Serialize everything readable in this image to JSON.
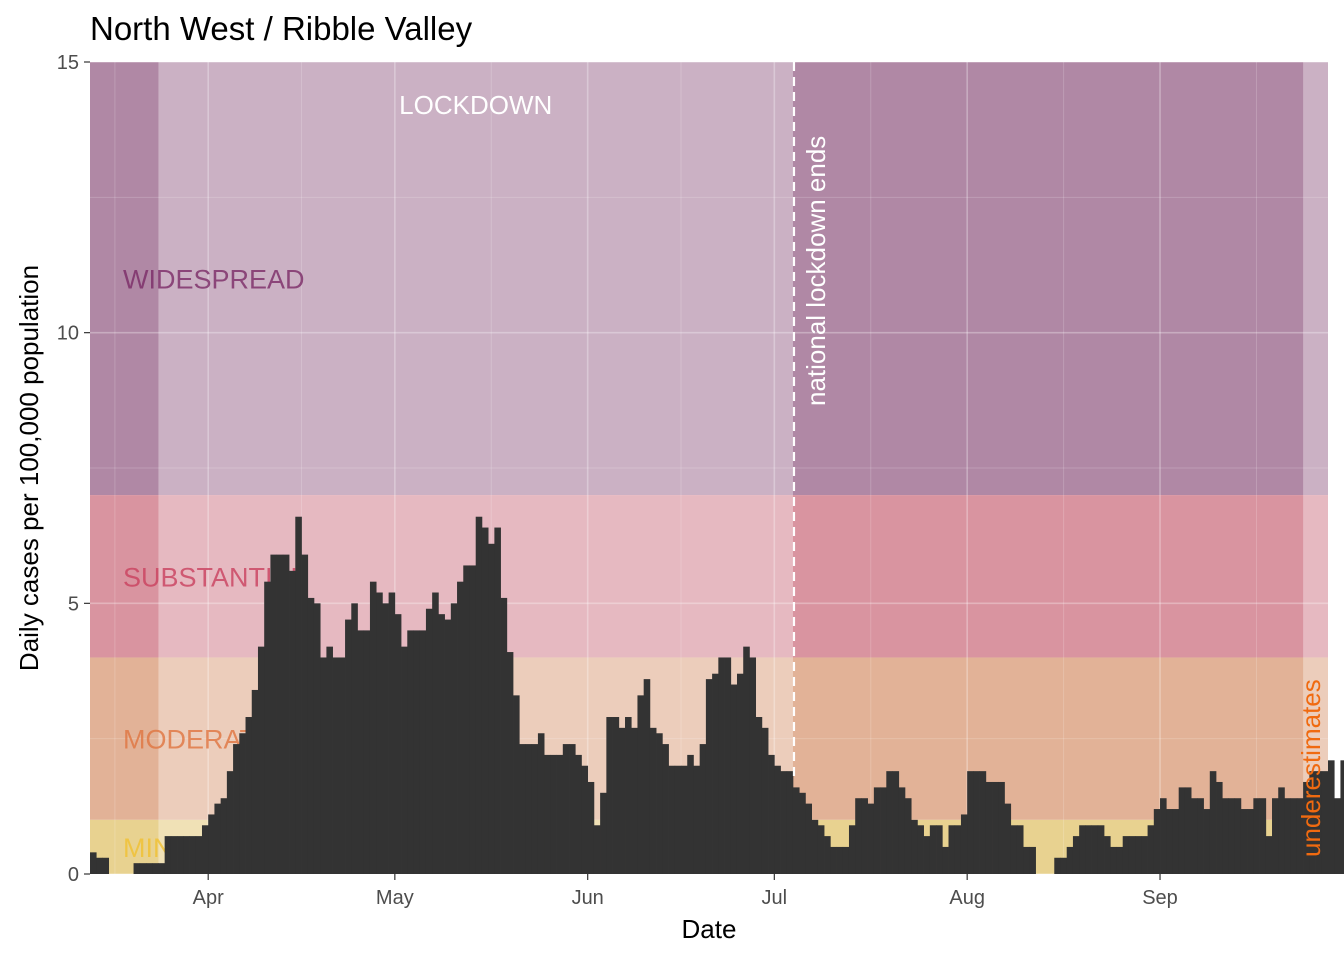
{
  "chart_data": {
    "type": "bar",
    "title": "North West / Ribble Valley",
    "xlabel": "Date",
    "ylabel": "Daily cases per 100,000 population",
    "xlim": [
      "2020-03-13",
      "2020-09-28"
    ],
    "ylim": [
      0,
      15
    ],
    "yticks": [
      0,
      5,
      10,
      15
    ],
    "x_ticks": [
      {
        "date": "2020-04-01",
        "label": "Apr"
      },
      {
        "date": "2020-05-01",
        "label": "May"
      },
      {
        "date": "2020-06-01",
        "label": "Jun"
      },
      {
        "date": "2020-07-01",
        "label": "Jul"
      },
      {
        "date": "2020-08-01",
        "label": "Aug"
      },
      {
        "date": "2020-09-01",
        "label": "Sep"
      }
    ],
    "grid": true,
    "bar_color": "#333333",
    "bands": [
      {
        "label": "WIDESPREAD",
        "from": 7,
        "to": 15,
        "color": "#b088a5",
        "label_color": "#7b2a67",
        "label_value": 11
      },
      {
        "label": "SUBSTANTIAL",
        "from": 4,
        "to": 7,
        "color": "#d994a0",
        "label_color": "#c9405e",
        "label_value": 5.5
      },
      {
        "label": "MODERATE",
        "from": 1,
        "to": 4,
        "color": "#e2b297",
        "label_color": "#e07440",
        "label_value": 2.5
      },
      {
        "label": "MINOR",
        "from": 0,
        "to": 1,
        "color": "#e8d290",
        "label_color": "#f0c030",
        "label_value": 0.5
      }
    ],
    "lockdown": {
      "label": "LOCKDOWN",
      "start": "2020-03-24",
      "end": "2020-07-04",
      "color": "#ffffff",
      "opacity": 0.35
    },
    "underestimate_period": {
      "start": "2020-09-24",
      "end": "2020-09-28",
      "color": "#ffffff",
      "opacity": 0.35,
      "label": "underestimates",
      "label_color": "#f06a10"
    },
    "event_line": {
      "date": "2020-07-04",
      "label": "national lockdown ends",
      "color": "#ffffff"
    },
    "start_date": "2020-03-13",
    "values": [
      0.4,
      0.3,
      0.3,
      0.0,
      0.0,
      0.0,
      0.0,
      0.2,
      0.2,
      0.2,
      0.2,
      0.2,
      0.7,
      0.7,
      0.7,
      0.7,
      0.7,
      0.7,
      0.9,
      1.1,
      1.3,
      1.4,
      1.9,
      2.4,
      2.6,
      2.9,
      3.4,
      4.2,
      5.4,
      5.9,
      5.9,
      5.9,
      5.6,
      6.6,
      5.9,
      5.1,
      5.0,
      4.0,
      4.2,
      4.0,
      4.0,
      4.7,
      5.0,
      4.5,
      4.5,
      5.4,
      5.2,
      5.0,
      5.2,
      4.8,
      4.2,
      4.5,
      4.5,
      4.5,
      4.9,
      5.2,
      4.8,
      4.7,
      5.0,
      5.4,
      5.7,
      5.7,
      6.6,
      6.4,
      6.1,
      6.4,
      5.1,
      4.1,
      3.3,
      2.4,
      2.4,
      2.4,
      2.6,
      2.2,
      2.2,
      2.2,
      2.4,
      2.4,
      2.2,
      2.0,
      1.7,
      0.9,
      1.5,
      2.9,
      2.9,
      2.7,
      2.9,
      2.7,
      3.3,
      3.6,
      2.7,
      2.6,
      2.4,
      2.0,
      2.0,
      2.0,
      2.2,
      2.0,
      2.4,
      3.6,
      3.7,
      4.0,
      4.0,
      3.5,
      3.7,
      4.2,
      4.0,
      2.9,
      2.7,
      2.2,
      2.0,
      1.9,
      1.9,
      1.6,
      1.5,
      1.3,
      1.0,
      0.9,
      0.7,
      0.5,
      0.5,
      0.5,
      0.9,
      1.4,
      1.4,
      1.3,
      1.6,
      1.6,
      1.9,
      1.9,
      1.6,
      1.4,
      1.0,
      0.9,
      0.7,
      0.9,
      0.9,
      0.5,
      0.9,
      0.9,
      1.1,
      1.9,
      1.9,
      1.9,
      1.7,
      1.7,
      1.7,
      1.3,
      0.9,
      0.9,
      0.5,
      0.5,
      0.0,
      0.0,
      0.0,
      0.3,
      0.3,
      0.5,
      0.7,
      0.9,
      0.9,
      0.9,
      0.9,
      0.7,
      0.5,
      0.5,
      0.7,
      0.7,
      0.7,
      0.7,
      0.9,
      1.2,
      1.4,
      1.2,
      1.2,
      1.6,
      1.6,
      1.4,
      1.4,
      1.2,
      1.9,
      1.7,
      1.4,
      1.4,
      1.4,
      1.2,
      1.2,
      1.4,
      1.4,
      0.7,
      1.4,
      1.6,
      1.4,
      1.4,
      1.4,
      1.7,
      1.9,
      1.9,
      1.9,
      2.1,
      1.4,
      2.1,
      2.6,
      3.0,
      3.0,
      3.0,
      3.0,
      2.6,
      2.6,
      3.8,
      2.4,
      2.6,
      2.3,
      2.1,
      2.1,
      2.1,
      2.1,
      1.6,
      2.6,
      2.3,
      2.3,
      2.3,
      2.6,
      3.3,
      3.8,
      4.2,
      3.5,
      4.3,
      5.2,
      6.1,
      7.3,
      8.2,
      9.1,
      10.3,
      11.7,
      12.2,
      13.4,
      13.1,
      15.1,
      12.0,
      12.2,
      11.9,
      12.3,
      12.0
    ]
  }
}
